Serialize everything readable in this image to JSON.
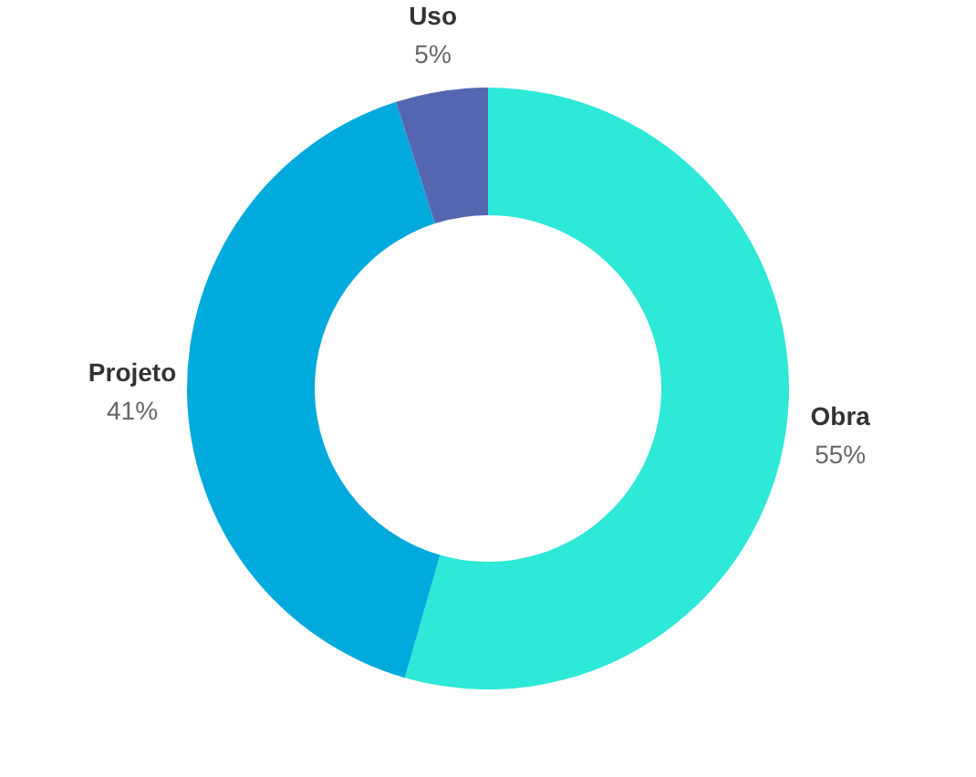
{
  "chart_data": {
    "type": "donut",
    "categories": [
      "Obra",
      "Projeto",
      "Uso"
    ],
    "values": [
      55,
      41,
      5
    ],
    "colors": [
      "#2ee8d8",
      "#00aadd",
      "#5566b0"
    ],
    "value_labels": [
      "55%",
      "41%",
      "5%"
    ]
  }
}
